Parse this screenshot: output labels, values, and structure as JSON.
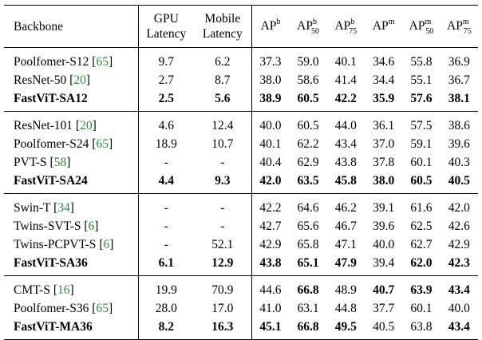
{
  "header": {
    "backbone": "Backbone",
    "gpu_latency_line1": "GPU",
    "gpu_latency_line2": "Latency",
    "mobile_latency_line1": "Mobile",
    "mobile_latency_line2": "Latency",
    "metrics": [
      {
        "base": "AP",
        "sup": "b",
        "sub": ""
      },
      {
        "base": "AP",
        "sup": "b",
        "sub": "50"
      },
      {
        "base": "AP",
        "sup": "b",
        "sub": "75"
      },
      {
        "base": "AP",
        "sup": "m",
        "sub": ""
      },
      {
        "base": "AP",
        "sup": "m",
        "sub": "50"
      },
      {
        "base": "AP",
        "sup": "m",
        "sub": "75"
      }
    ]
  },
  "groups": [
    {
      "rows": [
        {
          "name": "Poolfomer-S12",
          "ref": "65",
          "bold_name": false,
          "gpu": "9.7",
          "mobile": "6.2",
          "vals": [
            "37.3",
            "59.0",
            "40.1",
            "34.6",
            "55.8",
            "36.9"
          ],
          "bold": []
        },
        {
          "name": "ResNet-50",
          "ref": "20",
          "bold_name": false,
          "gpu": "2.7",
          "mobile": "8.7",
          "vals": [
            "38.0",
            "58.6",
            "41.4",
            "34.4",
            "55.1",
            "36.7"
          ],
          "bold": []
        },
        {
          "name": "FastViT-SA12",
          "ref": "",
          "bold_name": true,
          "gpu": "2.5",
          "mobile": "5.6",
          "vals": [
            "38.9",
            "60.5",
            "42.2",
            "35.9",
            "57.6",
            "38.1"
          ],
          "bold": [
            "gpu",
            "mobile",
            0,
            1,
            2,
            3,
            4,
            5
          ]
        }
      ]
    },
    {
      "rows": [
        {
          "name": "ResNet-101",
          "ref": "20",
          "bold_name": false,
          "gpu": "4.6",
          "mobile": "12.4",
          "vals": [
            "40.0",
            "60.5",
            "44.0",
            "36.1",
            "57.5",
            "38.6"
          ],
          "bold": []
        },
        {
          "name": "Poolfomer-S24",
          "ref": "65",
          "bold_name": false,
          "gpu": "18.9",
          "mobile": "10.7",
          "vals": [
            "40.1",
            "62.2",
            "43.4",
            "37.0",
            "59.1",
            "39.6"
          ],
          "bold": []
        },
        {
          "name": "PVT-S",
          "ref": "58",
          "bold_name": false,
          "gpu": "-",
          "mobile": "-",
          "vals": [
            "40.4",
            "62.9",
            "43.8",
            "37.8",
            "60.1",
            "40.3"
          ],
          "bold": []
        },
        {
          "name": "FastViT-SA24",
          "ref": "",
          "bold_name": true,
          "gpu": "4.4",
          "mobile": "9.3",
          "vals": [
            "42.0",
            "63.5",
            "45.8",
            "38.0",
            "60.5",
            "40.5"
          ],
          "bold": [
            "gpu",
            "mobile",
            0,
            1,
            2,
            3,
            4,
            5
          ]
        }
      ]
    },
    {
      "rows": [
        {
          "name": "Swin-T",
          "ref": "34",
          "bold_name": false,
          "gpu": "-",
          "mobile": "-",
          "vals": [
            "42.2",
            "64.6",
            "46.2",
            "39.1",
            "61.6",
            "42.0"
          ],
          "bold": []
        },
        {
          "name": "Twins-SVT-S",
          "ref": "6",
          "bold_name": false,
          "gpu": "-",
          "mobile": "-",
          "vals": [
            "42.7",
            "65.6",
            "46.7",
            "39.6",
            "62.5",
            "42.6"
          ],
          "bold": []
        },
        {
          "name": "Twins-PCPVT-S",
          "ref": "6",
          "bold_name": false,
          "gpu": "-",
          "mobile": "52.1",
          "vals": [
            "42.9",
            "65.8",
            "47.1",
            "40.0",
            "62.7",
            "42.9"
          ],
          "bold": []
        },
        {
          "name": "FastViT-SA36",
          "ref": "",
          "bold_name": true,
          "gpu": "6.1",
          "mobile": "12.9",
          "vals": [
            "43.8",
            "65.1",
            "47.9",
            "39.4",
            "62.0",
            "42.3"
          ],
          "bold": [
            "gpu",
            "mobile",
            0,
            1,
            2,
            4,
            5
          ]
        }
      ]
    },
    {
      "rows": [
        {
          "name": "CMT-S",
          "ref": "16",
          "bold_name": false,
          "gpu": "19.9",
          "mobile": "70.9",
          "vals": [
            "44.6",
            "66.8",
            "48.9",
            "40.7",
            "63.9",
            "43.4"
          ],
          "bold": [
            1,
            3,
            4,
            5
          ]
        },
        {
          "name": "Poolfomer-S36",
          "ref": "65",
          "bold_name": false,
          "gpu": "28.0",
          "mobile": "17.0",
          "vals": [
            "41.0",
            "63.1",
            "44.8",
            "37.7",
            "60.1",
            "40.0"
          ],
          "bold": []
        },
        {
          "name": "FastViT-MA36",
          "ref": "",
          "bold_name": true,
          "gpu": "8.2",
          "mobile": "16.3",
          "vals": [
            "45.1",
            "66.8",
            "49.5",
            "40.5",
            "63.8",
            "43.4"
          ],
          "bold": [
            "gpu",
            "mobile",
            0,
            1,
            2,
            5
          ]
        }
      ]
    }
  ]
}
